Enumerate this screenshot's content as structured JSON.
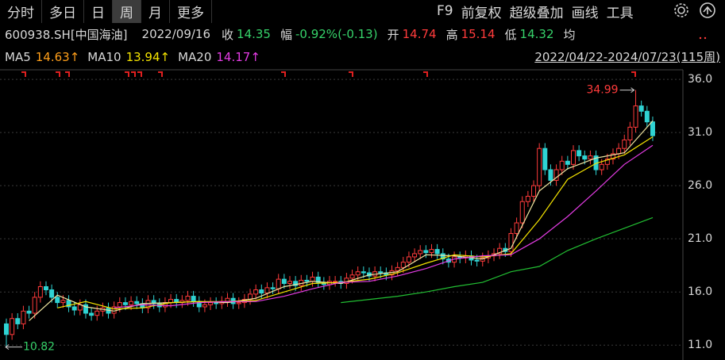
{
  "toolbar": {
    "tabs": [
      "分时",
      "多日",
      "日",
      "周",
      "月",
      "更多"
    ],
    "active_tab": 3,
    "tools": [
      "F9",
      "前复权",
      "超级叠加",
      "画线",
      "工具"
    ]
  },
  "quote": {
    "symbol": "600938.SH[中国海油]",
    "date": "2022/09/16",
    "items": [
      {
        "label": "收",
        "value": "14.35",
        "color": "#36d26a"
      },
      {
        "label": "幅",
        "value": "-0.92%(-0.13)",
        "color": "#36d26a"
      },
      {
        "label": "开",
        "value": "14.74",
        "color": "#ff3b3b"
      },
      {
        "label": "高",
        "value": "15.14",
        "color": "#ff3b3b"
      },
      {
        "label": "低",
        "value": "14.32",
        "color": "#36d26a"
      },
      {
        "label": "均"
      }
    ]
  },
  "range": "2022/04/22-2024/07/23(115周)",
  "chart_data": {
    "type": "candlestick",
    "up_color": "#ff3b3b",
    "down_color": "#2fd3d3",
    "open": [
      13.0,
      12.0,
      13.5,
      13.0,
      14.2,
      14.0,
      15.5,
      16.5,
      16.2,
      15.5,
      15.0,
      15.2,
      14.6,
      14.3,
      14.8,
      14.0,
      13.8,
      14.2,
      14.5,
      14.0,
      14.6,
      15.0,
      14.8,
      15.1,
      14.9,
      14.5,
      15.2,
      14.9,
      14.6,
      15.0,
      15.3,
      15.0,
      15.2,
      15.6,
      15.1,
      14.6,
      14.8,
      15.0,
      14.9,
      15.1,
      15.4,
      14.9,
      15.0,
      15.3,
      15.8,
      16.2,
      15.9,
      16.4,
      16.3,
      17.2,
      16.8,
      17.0,
      16.6,
      17.1,
      17.0,
      17.4,
      16.9,
      16.7,
      17.0,
      17.0,
      16.8,
      17.3,
      17.6,
      17.9,
      17.8,
      17.5,
      17.9,
      17.8,
      17.6,
      18.0,
      18.3,
      18.8,
      19.3,
      19.6,
      19.9,
      19.7,
      20.0,
      19.6,
      19.1,
      18.8,
      19.3,
      19.2,
      19.4,
      19.0,
      18.9,
      19.2,
      19.4,
      19.6,
      20.1,
      19.8,
      21.5,
      22.5,
      24.5,
      25.0,
      26.0,
      29.5,
      27.5,
      26.5,
      27.5,
      28.3,
      28.0,
      29.3,
      28.8,
      28.5,
      28.8,
      27.5,
      28.0,
      28.5,
      29.0,
      29.5,
      30.3,
      31.5,
      33.5,
      33.0,
      32.0
    ],
    "high": [
      13.5,
      14.0,
      14.0,
      14.7,
      14.7,
      16.0,
      17.0,
      17.0,
      16.7,
      16.0,
      15.7,
      15.7,
      15.1,
      15.3,
      15.3,
      14.5,
      14.7,
      15.0,
      15.0,
      15.1,
      15.5,
      15.5,
      15.6,
      15.6,
      15.4,
      15.7,
      15.7,
      15.4,
      15.5,
      15.8,
      15.8,
      15.7,
      16.1,
      16.1,
      15.6,
      15.3,
      15.5,
      15.5,
      15.6,
      15.9,
      15.9,
      15.5,
      15.8,
      16.3,
      16.7,
      16.7,
      16.9,
      16.9,
      17.7,
      17.7,
      17.5,
      17.5,
      17.6,
      17.6,
      17.9,
      17.9,
      17.4,
      17.5,
      17.5,
      17.5,
      17.8,
      18.1,
      18.4,
      18.4,
      18.3,
      18.4,
      18.4,
      18.3,
      18.5,
      18.8,
      19.3,
      19.8,
      20.1,
      20.4,
      20.4,
      20.5,
      20.5,
      20.1,
      19.6,
      19.8,
      19.8,
      19.9,
      19.9,
      19.5,
      19.7,
      19.9,
      20.1,
      20.6,
      20.6,
      22.0,
      23.0,
      25.0,
      25.5,
      26.5,
      30.0,
      30.0,
      28.0,
      28.0,
      28.8,
      28.8,
      29.8,
      29.8,
      29.3,
      29.3,
      29.3,
      28.5,
      29.0,
      29.5,
      30.0,
      30.8,
      32.0,
      34.99,
      34.0,
      33.5,
      32.5
    ],
    "low": [
      10.82,
      11.5,
      12.5,
      12.5,
      13.5,
      13.5,
      15.0,
      15.7,
      15.0,
      14.5,
      14.5,
      14.1,
      13.8,
      13.8,
      13.5,
      13.3,
      13.3,
      13.7,
      13.5,
      13.5,
      14.1,
      14.3,
      14.3,
      14.4,
      14.0,
      14.0,
      14.4,
      14.1,
      14.1,
      14.5,
      14.5,
      14.5,
      14.7,
      14.6,
      14.1,
      14.1,
      14.3,
      14.4,
      14.4,
      14.6,
      14.4,
      14.4,
      14.5,
      14.8,
      15.3,
      15.4,
      15.4,
      15.8,
      15.8,
      16.3,
      16.3,
      16.1,
      16.1,
      16.5,
      16.5,
      16.4,
      16.2,
      16.2,
      16.5,
      16.3,
      16.3,
      16.8,
      17.1,
      17.3,
      17.0,
      17.0,
      17.3,
      17.1,
      17.1,
      17.5,
      17.8,
      18.3,
      18.8,
      19.1,
      19.2,
      19.2,
      19.1,
      18.6,
      18.3,
      18.3,
      18.7,
      18.7,
      18.5,
      18.4,
      18.4,
      18.7,
      18.9,
      19.1,
      19.3,
      19.3,
      21.0,
      22.0,
      24.0,
      24.5,
      25.5,
      27.0,
      26.0,
      26.0,
      27.0,
      27.5,
      27.5,
      28.3,
      28.0,
      28.0,
      27.0,
      27.0,
      27.5,
      28.0,
      28.5,
      29.0,
      29.8,
      31.0,
      32.5,
      31.5,
      30.2
    ],
    "close": [
      12.0,
      13.5,
      13.0,
      14.2,
      14.0,
      15.5,
      16.5,
      16.2,
      15.5,
      15.0,
      15.2,
      14.6,
      14.3,
      14.8,
      14.0,
      13.8,
      14.2,
      14.5,
      14.0,
      14.6,
      15.0,
      14.8,
      15.1,
      14.9,
      14.5,
      15.2,
      14.9,
      14.6,
      15.0,
      15.3,
      15.0,
      15.2,
      15.6,
      15.1,
      14.6,
      14.8,
      15.0,
      14.9,
      15.1,
      15.4,
      14.9,
      15.0,
      15.3,
      15.8,
      16.2,
      15.9,
      16.4,
      16.3,
      17.2,
      16.8,
      17.0,
      16.6,
      17.1,
      17.0,
      17.4,
      16.9,
      16.7,
      17.0,
      17.0,
      16.8,
      17.3,
      17.6,
      17.9,
      17.8,
      17.5,
      17.9,
      17.8,
      17.6,
      18.0,
      18.3,
      18.8,
      19.3,
      19.6,
      19.9,
      19.7,
      20.0,
      19.6,
      19.1,
      18.8,
      19.3,
      19.2,
      19.4,
      19.0,
      18.9,
      19.2,
      19.4,
      19.6,
      20.1,
      19.8,
      21.5,
      22.5,
      24.5,
      25.0,
      26.0,
      29.5,
      27.5,
      26.5,
      27.5,
      28.3,
      28.0,
      29.3,
      28.8,
      28.5,
      28.8,
      27.5,
      28.0,
      28.5,
      29.0,
      29.5,
      30.3,
      31.5,
      33.5,
      33.0,
      32.0,
      30.7
    ],
    "ma_x": [
      4,
      9,
      14,
      19,
      24,
      29,
      34,
      39,
      44,
      49,
      54,
      59,
      64,
      69,
      74,
      79,
      84,
      89,
      94,
      99,
      104,
      109,
      114
    ],
    "series": [
      {
        "name": "MA5",
        "legend_value": "14.63↑",
        "legend_color": "#ff9f1a",
        "color": "#f2e6a0",
        "values": [
          13.3,
          15.7,
          14.6,
          14.2,
          14.9,
          15.0,
          15.1,
          15.0,
          15.4,
          16.5,
          17.0,
          16.8,
          17.6,
          17.9,
          19.5,
          19.4,
          19.1,
          20.1,
          25.5,
          27.6,
          28.6,
          29.1,
          32.1
        ]
      },
      {
        "name": "MA10",
        "legend_value": "13.94↑",
        "legend_color": "#f5e400",
        "color": "#f5e400",
        "values": [
          null,
          14.5,
          15.1,
          14.4,
          14.5,
          15.0,
          15.1,
          15.1,
          15.2,
          16.0,
          16.8,
          16.9,
          17.2,
          17.8,
          18.7,
          19.5,
          19.3,
          19.6,
          22.8,
          26.6,
          28.1,
          28.9,
          30.6
        ]
      },
      {
        "name": "MA20",
        "legend_value": "14.17↑",
        "legend_color": "#e43ce4",
        "color": "#e43ce4",
        "values": [
          null,
          null,
          null,
          14.5,
          14.8,
          14.7,
          15.0,
          15.1,
          15.1,
          15.6,
          16.3,
          16.9,
          17.0,
          17.5,
          18.2,
          19.1,
          19.4,
          19.5,
          21.0,
          23.1,
          25.5,
          28.0,
          29.8
        ]
      },
      {
        "color": "#22c033",
        "values": [
          null,
          null,
          null,
          null,
          null,
          null,
          null,
          null,
          null,
          null,
          null,
          15.0,
          15.3,
          15.6,
          16.0,
          16.5,
          16.9,
          17.9,
          18.4,
          19.9,
          21.0,
          22.0,
          23.0
        ]
      }
    ],
    "ylim": [
      9.6,
      36.9
    ],
    "yticks": [
      {
        "value": 11,
        "label": "11.0"
      },
      {
        "value": 16,
        "label": "16.0"
      },
      {
        "value": 21,
        "label": "21.0"
      },
      {
        "value": 26,
        "label": "26.0"
      },
      {
        "value": 31,
        "label": "31.0"
      },
      {
        "value": 36,
        "label": "36.0"
      }
    ],
    "grid": true
  }
}
